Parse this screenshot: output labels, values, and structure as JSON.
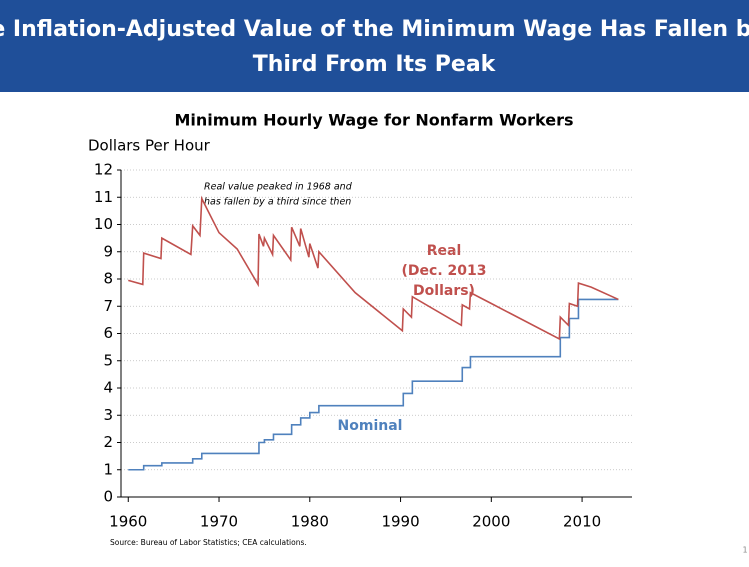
{
  "chart_data": {
    "type": "line",
    "slide_title": [
      "The Inflation-Adjusted Value of the Minimum Wage Has Fallen by a",
      "Third From Its Peak"
    ],
    "title": "Minimum Hourly Wage for Nonfarm Workers",
    "ylabel": "Dollars Per Hour",
    "xlim": [
      1959.2,
      2015.5
    ],
    "xticks": [
      1960,
      1970,
      1980,
      1990,
      2000,
      2010
    ],
    "ylim": [
      0,
      12
    ],
    "yticks": [
      0,
      1,
      2,
      3,
      4,
      5,
      6,
      7,
      8,
      9,
      10,
      11,
      12
    ],
    "grid": true,
    "series": [
      {
        "name": "Nominal",
        "color": "#4f81bd",
        "x": [
          1960,
          1961.7,
          1961.7,
          1963.7,
          1963.7,
          1967.1,
          1967.1,
          1968.1,
          1968.1,
          1974.4,
          1974.4,
          1975.0,
          1975.0,
          1976.0,
          1976.0,
          1978.0,
          1978.0,
          1979.0,
          1979.0,
          1980.0,
          1980.0,
          1981.0,
          1981.0,
          1990.3,
          1990.3,
          1991.3,
          1991.3,
          1996.8,
          1996.8,
          1997.7,
          1997.7,
          2007.6,
          2007.6,
          2008.6,
          2008.6,
          2009.6,
          2009.6,
          2014.0
        ],
        "values": [
          1.0,
          1.0,
          1.15,
          1.15,
          1.25,
          1.25,
          1.4,
          1.4,
          1.6,
          1.6,
          2.0,
          2.0,
          2.1,
          2.1,
          2.3,
          2.3,
          2.65,
          2.65,
          2.9,
          2.9,
          3.1,
          3.1,
          3.35,
          3.35,
          3.8,
          3.8,
          4.25,
          4.25,
          4.75,
          4.75,
          5.15,
          5.15,
          5.85,
          5.85,
          6.55,
          6.55,
          7.25,
          7.25
        ]
      },
      {
        "name": "Real",
        "color": "#c0504d",
        "x": [
          1960,
          1961.6,
          1961.7,
          1963.6,
          1963.7,
          1966.9,
          1967.1,
          1967.9,
          1968.1,
          1970.0,
          1972.0,
          1974.3,
          1974.4,
          1974.9,
          1975.0,
          1975.9,
          1976.0,
          1977.9,
          1978.0,
          1978.9,
          1979.0,
          1979.9,
          1980.0,
          1980.9,
          1981.0,
          1985.0,
          1990.2,
          1990.3,
          1991.2,
          1991.3,
          1996.7,
          1996.8,
          1997.6,
          1997.7,
          2000.0,
          2007.5,
          2007.6,
          2008.5,
          2008.6,
          2009.5,
          2009.6,
          2011.0,
          2014.0
        ],
        "values": [
          7.95,
          7.8,
          8.95,
          8.75,
          9.5,
          8.9,
          9.95,
          9.6,
          10.95,
          9.7,
          9.1,
          7.8,
          9.65,
          9.2,
          9.5,
          8.9,
          9.6,
          8.7,
          9.9,
          9.2,
          9.85,
          8.8,
          9.3,
          8.4,
          9.0,
          7.5,
          6.1,
          6.9,
          6.6,
          7.35,
          6.3,
          7.05,
          6.9,
          7.5,
          7.1,
          5.8,
          6.6,
          6.3,
          7.1,
          7.0,
          7.85,
          7.7,
          7.25
        ]
      }
    ],
    "annotations": {
      "peak_note": [
        "Real value peaked in 1968 and",
        "has fallen by a third since then"
      ],
      "real_label": [
        "Real",
        "(Dec. 2013",
        "Dollars)"
      ],
      "nominal_label": "Nominal"
    },
    "source": "Source: Bureau of Labor Statistics; CEA calculations.",
    "page_number": "1"
  }
}
